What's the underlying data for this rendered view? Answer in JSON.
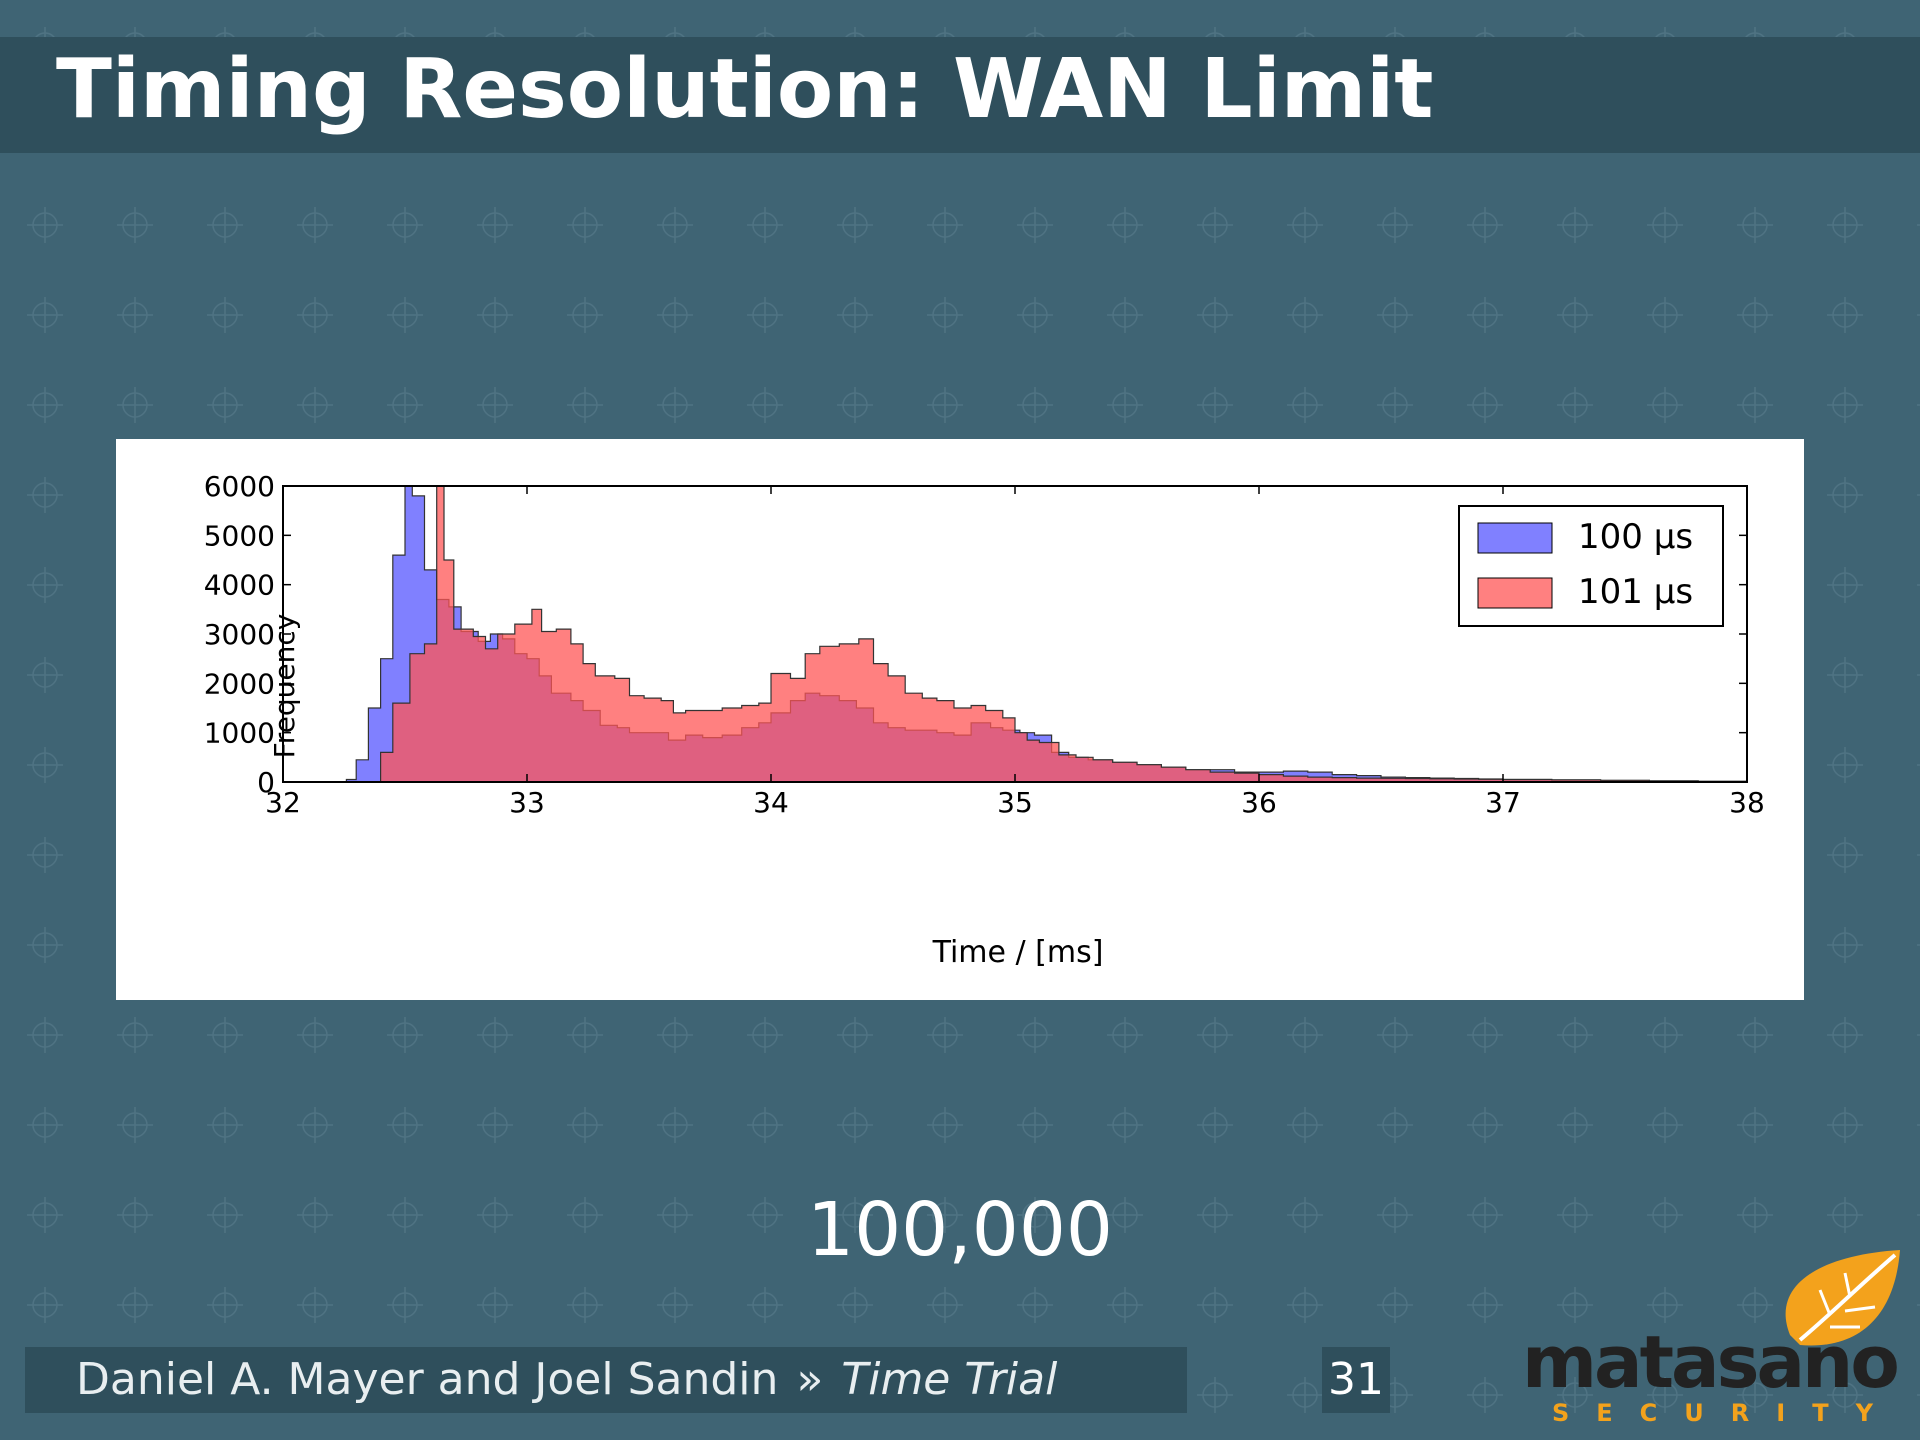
{
  "slide": {
    "title": "Timing Resolution: WAN Limit",
    "big_number": "100,000",
    "footer": {
      "authors": "Daniel A. Mayer and Joel Sandin",
      "separator": "»",
      "talk": "Time Trial",
      "page": "31"
    },
    "logo": {
      "word": "matasano",
      "sub": "SECURITY",
      "leaf_icon": "leaf-icon"
    },
    "colors": {
      "background": "#3f6474",
      "bar": "#2f4f5c",
      "accent": "#f3a21c"
    }
  },
  "chart_data": {
    "type": "histogram",
    "xlabel": "Time / [ms]",
    "ylabel": "Frequency",
    "xlim": [
      32,
      38
    ],
    "ylim": [
      0,
      6000
    ],
    "xticks": [
      "32",
      "33",
      "34",
      "35",
      "36",
      "37",
      "38"
    ],
    "yticks": [
      "0",
      "1000",
      "2000",
      "3000",
      "4000",
      "5000",
      "6000"
    ],
    "legend_position": "top-right",
    "series": [
      {
        "name": "100 µs",
        "color": "#5555ff",
        "points": [
          [
            32.22,
            0
          ],
          [
            32.26,
            50
          ],
          [
            32.3,
            450
          ],
          [
            32.35,
            1500
          ],
          [
            32.4,
            2500
          ],
          [
            32.45,
            4600
          ],
          [
            32.5,
            6000
          ],
          [
            32.53,
            5800
          ],
          [
            32.58,
            4300
          ],
          [
            32.63,
            3700
          ],
          [
            32.68,
            3550
          ],
          [
            32.73,
            3050
          ],
          [
            32.8,
            2850
          ],
          [
            32.85,
            3000
          ],
          [
            32.9,
            2900
          ],
          [
            32.95,
            2600
          ],
          [
            33.0,
            2500
          ],
          [
            33.05,
            2150
          ],
          [
            33.1,
            1800
          ],
          [
            33.18,
            1650
          ],
          [
            33.23,
            1450
          ],
          [
            33.3,
            1150
          ],
          [
            33.37,
            1100
          ],
          [
            33.42,
            1000
          ],
          [
            33.5,
            1000
          ],
          [
            33.58,
            850
          ],
          [
            33.65,
            950
          ],
          [
            33.72,
            900
          ],
          [
            33.8,
            950
          ],
          [
            33.88,
            1100
          ],
          [
            33.95,
            1200
          ],
          [
            34.0,
            1400
          ],
          [
            34.08,
            1650
          ],
          [
            34.14,
            1800
          ],
          [
            34.2,
            1750
          ],
          [
            34.28,
            1650
          ],
          [
            34.35,
            1500
          ],
          [
            34.42,
            1200
          ],
          [
            34.48,
            1100
          ],
          [
            34.55,
            1050
          ],
          [
            34.6,
            1050
          ],
          [
            34.68,
            1000
          ],
          [
            34.75,
            950
          ],
          [
            34.82,
            1200
          ],
          [
            34.9,
            1100
          ],
          [
            34.95,
            1050
          ],
          [
            35.02,
            1000
          ],
          [
            35.08,
            950
          ],
          [
            35.15,
            600
          ],
          [
            35.22,
            500
          ],
          [
            35.3,
            450
          ],
          [
            35.4,
            400
          ],
          [
            35.5,
            350
          ],
          [
            35.6,
            300
          ],
          [
            35.7,
            250
          ],
          [
            35.8,
            250
          ],
          [
            35.9,
            200
          ],
          [
            36.0,
            200
          ],
          [
            36.1,
            220
          ],
          [
            36.2,
            200
          ],
          [
            36.3,
            150
          ],
          [
            36.4,
            130
          ],
          [
            36.5,
            100
          ],
          [
            36.6,
            90
          ],
          [
            36.7,
            80
          ],
          [
            36.8,
            70
          ],
          [
            36.9,
            60
          ],
          [
            37.0,
            50
          ],
          [
            37.2,
            40
          ],
          [
            37.4,
            30
          ],
          [
            37.6,
            20
          ],
          [
            37.8,
            15
          ],
          [
            38.0,
            10
          ]
        ]
      },
      {
        "name": "101 µs",
        "color": "#ff5555",
        "points": [
          [
            32.35,
            0
          ],
          [
            32.4,
            600
          ],
          [
            32.45,
            1600
          ],
          [
            32.52,
            2600
          ],
          [
            32.58,
            2800
          ],
          [
            32.63,
            6000
          ],
          [
            32.66,
            4500
          ],
          [
            32.7,
            3100
          ],
          [
            32.78,
            2950
          ],
          [
            32.83,
            2700
          ],
          [
            32.88,
            3000
          ],
          [
            32.95,
            3200
          ],
          [
            33.02,
            3500
          ],
          [
            33.06,
            3050
          ],
          [
            33.12,
            3100
          ],
          [
            33.18,
            2800
          ],
          [
            33.23,
            2400
          ],
          [
            33.28,
            2150
          ],
          [
            33.36,
            2100
          ],
          [
            33.42,
            1750
          ],
          [
            33.48,
            1700
          ],
          [
            33.55,
            1650
          ],
          [
            33.6,
            1400
          ],
          [
            33.65,
            1450
          ],
          [
            33.72,
            1450
          ],
          [
            33.8,
            1500
          ],
          [
            33.88,
            1550
          ],
          [
            33.95,
            1600
          ],
          [
            34.0,
            2200
          ],
          [
            34.08,
            2100
          ],
          [
            34.14,
            2600
          ],
          [
            34.2,
            2750
          ],
          [
            34.28,
            2800
          ],
          [
            34.36,
            2900
          ],
          [
            34.42,
            2400
          ],
          [
            34.48,
            2150
          ],
          [
            34.55,
            1800
          ],
          [
            34.62,
            1700
          ],
          [
            34.68,
            1650
          ],
          [
            34.75,
            1500
          ],
          [
            34.82,
            1550
          ],
          [
            34.88,
            1450
          ],
          [
            34.95,
            1300
          ],
          [
            35.0,
            1000
          ],
          [
            35.05,
            850
          ],
          [
            35.1,
            800
          ],
          [
            35.18,
            550
          ],
          [
            35.25,
            500
          ],
          [
            35.32,
            450
          ],
          [
            35.4,
            400
          ],
          [
            35.5,
            350
          ],
          [
            35.6,
            300
          ],
          [
            35.7,
            250
          ],
          [
            35.8,
            200
          ],
          [
            35.9,
            180
          ],
          [
            36.0,
            150
          ],
          [
            36.1,
            120
          ],
          [
            36.2,
            100
          ],
          [
            36.3,
            90
          ],
          [
            36.4,
            80
          ],
          [
            36.5,
            75
          ],
          [
            36.6,
            70
          ],
          [
            36.7,
            65
          ],
          [
            36.8,
            60
          ],
          [
            36.9,
            55
          ],
          [
            37.0,
            50
          ],
          [
            37.2,
            45
          ],
          [
            37.4,
            35
          ],
          [
            37.6,
            25
          ],
          [
            37.8,
            15
          ],
          [
            38.0,
            10
          ]
        ]
      }
    ]
  }
}
